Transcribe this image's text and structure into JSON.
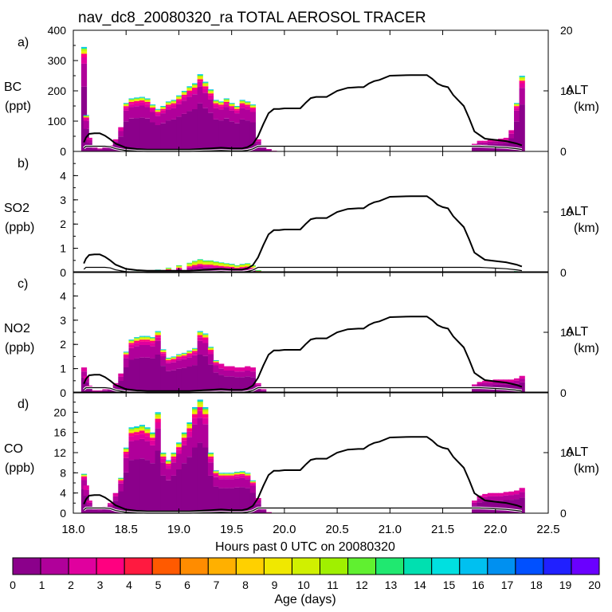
{
  "chart_data": {
    "title": "nav_dc8_20080320_ra TOTAL AEROSOL TRACER",
    "xlabel": "Hours past 0 UTC on 20080320",
    "xlim": [
      18.0,
      22.5
    ],
    "xticks": [
      "18.0",
      "18.5",
      "19.0",
      "19.5",
      "20.0",
      "20.5",
      "21.0",
      "21.5",
      "22.0",
      "22.5"
    ],
    "colorbar": {
      "label": "Age (days)",
      "ticks": [
        "0",
        "1",
        "2",
        "3",
        "4",
        "5",
        "6",
        "7",
        "8",
        "9",
        "10",
        "11",
        "12",
        "13",
        "14",
        "15",
        "16",
        "17",
        "18",
        "19",
        "20"
      ],
      "colors": [
        "#8b008b",
        "#b0009a",
        "#e0009e",
        "#ff0080",
        "#ff1a40",
        "#ff5a00",
        "#ff8c00",
        "#ffb000",
        "#ffd000",
        "#f0e800",
        "#d0f000",
        "#a0f000",
        "#60f030",
        "#20e870",
        "#00e0b0",
        "#00e0e0",
        "#00c0f0",
        "#0090f0",
        "#0050ff",
        "#2020ff",
        "#6a00ff"
      ]
    },
    "altitude": {
      "ylim": [
        0,
        20
      ],
      "x": [
        18.1,
        18.12,
        18.15,
        18.2,
        18.25,
        18.3,
        18.35,
        18.4,
        18.5,
        18.6,
        18.7,
        18.8,
        18.9,
        19.0,
        19.1,
        19.2,
        19.3,
        19.4,
        19.5,
        19.6,
        19.65,
        19.7,
        19.75,
        19.8,
        19.85,
        19.9,
        19.95,
        20.0,
        20.15,
        20.2,
        20.25,
        20.3,
        20.4,
        20.5,
        20.6,
        20.7,
        20.75,
        20.8,
        20.85,
        20.9,
        21.0,
        21.2,
        21.35,
        21.4,
        21.45,
        21.5,
        21.55,
        21.6,
        21.7,
        21.75,
        21.8,
        21.85,
        21.9,
        22.0,
        22.1,
        22.2,
        22.25
      ],
      "values": [
        1.5,
        2.3,
        2.9,
        3.0,
        3.0,
        2.6,
        2.0,
        1.3,
        0.6,
        0.4,
        0.3,
        0.3,
        0.3,
        0.3,
        0.3,
        0.4,
        0.5,
        0.6,
        0.5,
        0.5,
        0.7,
        1.2,
        2.5,
        4.5,
        6.3,
        7.0,
        7.0,
        7.1,
        7.1,
        8.0,
        8.8,
        9.0,
        9.0,
        10.0,
        10.5,
        10.6,
        10.6,
        11.2,
        11.6,
        11.8,
        12.5,
        12.6,
        12.6,
        12.0,
        11.2,
        10.8,
        10.6,
        9.3,
        7.5,
        5.5,
        3.3,
        2.7,
        2.1,
        1.9,
        1.7,
        1.3,
        1.0
      ]
    },
    "panels": [
      {
        "letter": "a)",
        "species": "BC",
        "unit": "(ppt)",
        "ymax": 400,
        "yticks": [
          "0",
          "100",
          "200",
          "300",
          "400"
        ],
        "alt_label": "ALT",
        "alt_unit": "(km)",
        "alt_ticks": [
          "0",
          "10",
          "20"
        ],
        "x": [
          18.1,
          18.12,
          18.15,
          18.2,
          18.25,
          18.3,
          18.35,
          18.4,
          18.45,
          18.5,
          18.55,
          18.6,
          18.65,
          18.7,
          18.75,
          18.8,
          18.85,
          18.9,
          18.95,
          19.0,
          19.05,
          19.1,
          19.15,
          19.2,
          19.25,
          19.3,
          19.35,
          19.4,
          19.45,
          19.5,
          19.55,
          19.6,
          19.65,
          19.7,
          19.75,
          19.8,
          19.85,
          19.9,
          21.8,
          21.85,
          21.9,
          21.95,
          22.0,
          22.05,
          22.1,
          22.15,
          22.2,
          22.25
        ],
        "values": [
          345,
          120,
          45,
          15,
          10,
          15,
          20,
          40,
          80,
          160,
          175,
          178,
          180,
          175,
          155,
          140,
          150,
          165,
          170,
          185,
          200,
          215,
          225,
          255,
          230,
          205,
          170,
          165,
          175,
          160,
          150,
          170,
          165,
          155,
          40,
          20,
          8,
          2,
          25,
          35,
          35,
          38,
          40,
          42,
          45,
          70,
          160,
          250
        ]
      },
      {
        "letter": "b)",
        "species": "SO2",
        "unit": "(ppb)",
        "ymax": 5,
        "yticks": [
          "0",
          "1",
          "2",
          "3",
          "4"
        ],
        "alt_label": "ALT",
        "alt_unit": "(km)",
        "alt_ticks": [
          "0",
          "10"
        ],
        "x": [
          18.1,
          18.2,
          18.3,
          18.4,
          18.5,
          18.6,
          18.7,
          18.8,
          18.9,
          19.0,
          19.1,
          19.15,
          19.2,
          19.25,
          19.3,
          19.35,
          19.4,
          19.45,
          19.5,
          19.55,
          19.6,
          19.65,
          19.7,
          19.75,
          19.8,
          22.0,
          22.1,
          22.2,
          22.25
        ],
        "values": [
          0.05,
          0.03,
          0.03,
          0.03,
          0.05,
          0.08,
          0.1,
          0.12,
          0.2,
          0.3,
          0.4,
          0.48,
          0.55,
          0.5,
          0.5,
          0.45,
          0.42,
          0.38,
          0.36,
          0.3,
          0.35,
          0.38,
          0.3,
          0.1,
          0.02,
          0.04,
          0.05,
          0.06,
          0.05
        ]
      },
      {
        "letter": "c)",
        "species": "NO2",
        "unit": "(ppb)",
        "ymax": 5,
        "yticks": [
          "0",
          "1",
          "2",
          "3",
          "4"
        ],
        "alt_label": "ALT",
        "alt_unit": "(km)",
        "alt_ticks": [
          "0",
          "10"
        ],
        "x": [
          18.1,
          18.12,
          18.15,
          18.2,
          18.25,
          18.3,
          18.35,
          18.4,
          18.45,
          18.5,
          18.55,
          18.6,
          18.65,
          18.7,
          18.75,
          18.8,
          18.85,
          18.9,
          18.95,
          19.0,
          19.05,
          19.1,
          19.15,
          19.2,
          19.25,
          19.3,
          19.35,
          19.4,
          19.45,
          19.5,
          19.55,
          19.6,
          19.65,
          19.7,
          19.75,
          19.8,
          19.85,
          21.8,
          21.85,
          21.9,
          21.95,
          22.0,
          22.05,
          22.1,
          22.15,
          22.2,
          22.25
        ],
        "values": [
          1.05,
          0.7,
          0.3,
          0.1,
          0.1,
          0.15,
          0.2,
          0.4,
          0.8,
          1.7,
          2.2,
          2.3,
          2.35,
          2.35,
          2.3,
          2.55,
          1.8,
          1.45,
          1.5,
          1.6,
          1.65,
          1.75,
          1.85,
          2.55,
          2.45,
          1.9,
          1.35,
          1.2,
          1.1,
          1.1,
          1.05,
          1.05,
          1.1,
          1.05,
          0.4,
          0.15,
          0.05,
          0.35,
          0.45,
          0.5,
          0.5,
          0.55,
          0.55,
          0.55,
          0.55,
          0.6,
          0.7
        ]
      },
      {
        "letter": "d)",
        "species": "CO",
        "unit": "(ppb)",
        "ymax": 24,
        "yticks": [
          "0",
          "4",
          "8",
          "12",
          "16",
          "20"
        ],
        "alt_label": "ALT",
        "alt_unit": "(km)",
        "alt_ticks": [
          "0",
          "10"
        ],
        "x": [
          18.1,
          18.12,
          18.15,
          18.2,
          18.25,
          18.3,
          18.35,
          18.4,
          18.45,
          18.5,
          18.55,
          18.6,
          18.65,
          18.7,
          18.75,
          18.8,
          18.85,
          18.9,
          18.95,
          19.0,
          19.05,
          19.1,
          19.15,
          19.2,
          19.25,
          19.3,
          19.35,
          19.4,
          19.45,
          19.5,
          19.55,
          19.6,
          19.65,
          19.7,
          19.75,
          19.8,
          19.85,
          21.8,
          21.85,
          21.9,
          21.95,
          22.0,
          22.05,
          22.1,
          22.15,
          22.2,
          22.25
        ],
        "values": [
          7.8,
          5.5,
          2.5,
          1.2,
          1.0,
          1.3,
          2.0,
          4.0,
          7.0,
          13.0,
          17.0,
          17.2,
          17.5,
          17.0,
          16.0,
          20.0,
          12.0,
          10.5,
          12.0,
          14.0,
          16.0,
          18.0,
          21.0,
          22.5,
          21.0,
          12.0,
          8.5,
          8.0,
          8.0,
          8.0,
          8.2,
          8.3,
          8.0,
          6.5,
          3.0,
          1.0,
          0.2,
          2.5,
          3.5,
          3.8,
          4.0,
          4.0,
          4.0,
          4.2,
          4.3,
          4.5,
          5.0
        ]
      }
    ]
  }
}
